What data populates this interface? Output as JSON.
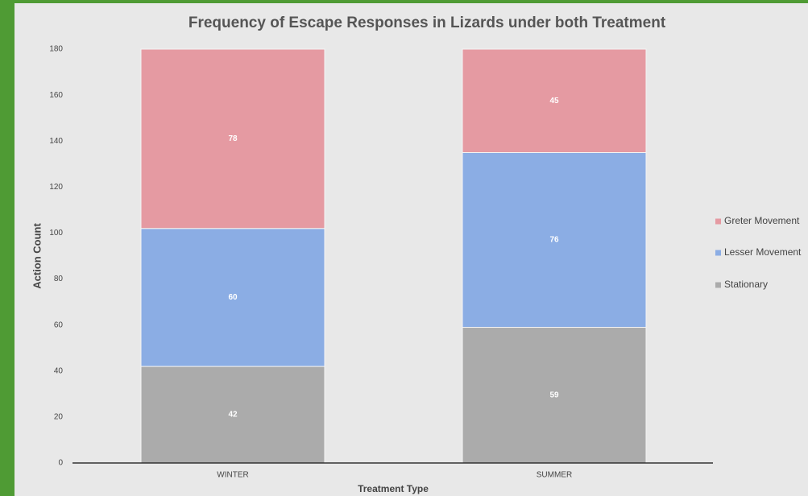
{
  "chart_data": {
    "type": "stacked_bar",
    "title": "Frequency of Escape Responses in Lizards under both Treatment",
    "xlabel": "Treatment Type",
    "ylabel": "Action Count",
    "categories": [
      "WINTER",
      "SUMMER"
    ],
    "series": [
      {
        "name": "Stationary",
        "color": "#ababab",
        "values": [
          42,
          59
        ]
      },
      {
        "name": "Lesser Movement",
        "color": "#8badE4",
        "values": [
          60,
          76
        ]
      },
      {
        "name": "Greter Movement",
        "color": "#e59aa2",
        "values": [
          78,
          45
        ]
      }
    ],
    "ylim": [
      0,
      180
    ],
    "yticks": [
      0,
      20,
      40,
      60,
      80,
      100,
      120,
      140,
      160,
      180
    ],
    "grid": false,
    "legend": "right"
  }
}
